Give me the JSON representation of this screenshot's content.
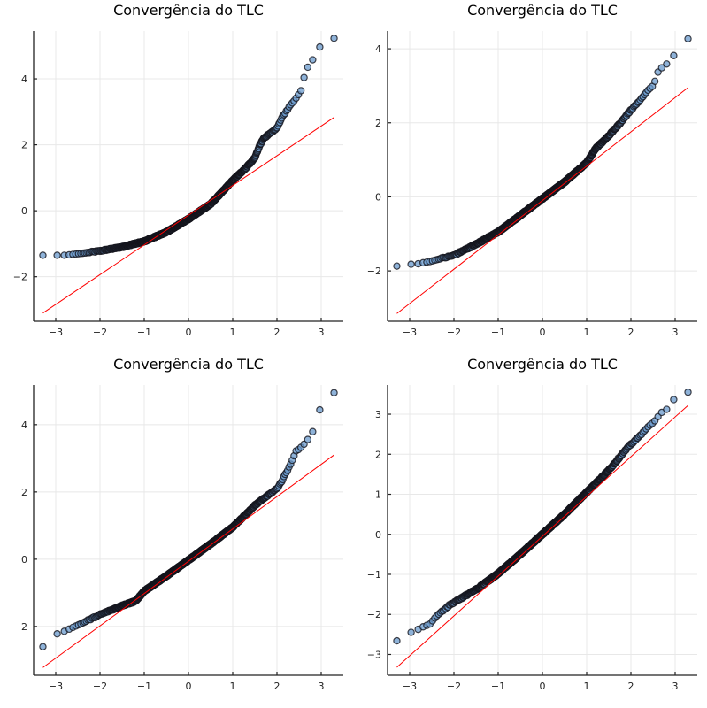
{
  "chart_data": [
    {
      "type": "scatter",
      "title": "Convergência do TLC",
      "xlabel": "",
      "ylabel": "",
      "xlim": [
        -3.5,
        3.5
      ],
      "ylim": [
        -3.35,
        5.45
      ],
      "xticks": [
        -3,
        -2,
        -1,
        0,
        1,
        2,
        3
      ],
      "yticks": [
        -2,
        0,
        2,
        4
      ],
      "grid": true,
      "reference_line": {
        "x": [
          -3.29,
          3.29
        ],
        "y": [
          -3.1,
          2.83
        ],
        "color": "#ff0000"
      },
      "quantile_curve": {
        "x": [
          -3.29,
          -2.97,
          -2.82,
          -2.72,
          -2.6,
          -2.4,
          -2.0,
          -1.5,
          -1.0,
          -0.5,
          0.0,
          0.5,
          1.0,
          1.3,
          1.5,
          1.6,
          1.7,
          2.0,
          2.1,
          2.2,
          2.3,
          2.4,
          2.5,
          2.57,
          2.61,
          2.71,
          2.82,
          2.97,
          3.29
        ],
        "y": [
          -1.35,
          -1.35,
          -1.35,
          -1.34,
          -1.32,
          -1.29,
          -1.22,
          -1.1,
          -0.93,
          -0.65,
          -0.25,
          0.2,
          0.92,
          1.3,
          1.6,
          1.95,
          2.2,
          2.5,
          2.8,
          3.0,
          3.2,
          3.35,
          3.55,
          3.7,
          4.03,
          4.4,
          4.6,
          4.97,
          5.23
        ]
      },
      "marker_color": "#6a99cc"
    },
    {
      "type": "scatter",
      "title": "Convergência do TLC",
      "xlabel": "",
      "ylabel": "",
      "xlim": [
        -3.5,
        3.5
      ],
      "ylim": [
        -3.36,
        4.48
      ],
      "xticks": [
        -3,
        -2,
        -1,
        0,
        1,
        2,
        3
      ],
      "yticks": [
        -2,
        0,
        2,
        4
      ],
      "grid": true,
      "reference_line": {
        "x": [
          -3.29,
          3.29
        ],
        "y": [
          -3.15,
          2.95
        ],
        "color": "#ff0000"
      },
      "quantile_curve": {
        "x": [
          -3.29,
          -2.97,
          -2.82,
          -2.7,
          -2.55,
          -2.3,
          -2.0,
          -1.5,
          -1.0,
          -0.5,
          0.0,
          0.5,
          1.0,
          1.2,
          1.5,
          1.8,
          2.0,
          2.2,
          2.4,
          2.5,
          2.57,
          2.62,
          2.71,
          2.82,
          2.97,
          3.29
        ],
        "y": [
          -1.87,
          -1.82,
          -1.81,
          -1.78,
          -1.75,
          -1.67,
          -1.58,
          -1.28,
          -0.95,
          -0.5,
          -0.05,
          0.4,
          0.92,
          1.3,
          1.65,
          2.05,
          2.35,
          2.6,
          2.9,
          3.0,
          3.2,
          3.4,
          3.5,
          3.6,
          3.82,
          4.27
        ]
      },
      "marker_color": "#6a99cc"
    },
    {
      "type": "scatter",
      "title": "Convergência do TLC",
      "xlabel": "",
      "ylabel": "",
      "xlim": [
        -3.5,
        3.5
      ],
      "ylim": [
        -3.45,
        5.18
      ],
      "xticks": [
        -3,
        -2,
        -1,
        0,
        1,
        2,
        3
      ],
      "yticks": [
        -2,
        0,
        2,
        4
      ],
      "grid": true,
      "reference_line": {
        "x": [
          -3.29,
          3.29
        ],
        "y": [
          -3.22,
          3.1
        ],
        "color": "#ff0000"
      },
      "quantile_curve": {
        "x": [
          -3.29,
          -2.97,
          -2.8,
          -2.65,
          -2.4,
          -2.0,
          -1.5,
          -1.2,
          -1.0,
          -0.5,
          0.0,
          0.5,
          1.0,
          1.5,
          2.0,
          2.1,
          2.22,
          2.3,
          2.38,
          2.43,
          2.5,
          2.6,
          2.71,
          2.82,
          2.97,
          3.29
        ],
        "y": [
          -2.6,
          -2.22,
          -2.14,
          -2.05,
          -1.9,
          -1.65,
          -1.38,
          -1.25,
          -0.95,
          -0.5,
          -0.03,
          0.45,
          0.95,
          1.6,
          2.1,
          2.3,
          2.6,
          2.8,
          3.05,
          3.22,
          3.27,
          3.4,
          3.58,
          3.82,
          4.45,
          4.95
        ]
      },
      "marker_color": "#6a99cc"
    },
    {
      "type": "scatter",
      "title": "Convergência do TLC",
      "xlabel": "",
      "ylabel": "",
      "xlim": [
        -3.5,
        3.5
      ],
      "ylim": [
        -3.52,
        3.73
      ],
      "xticks": [
        -3,
        -2,
        -1,
        0,
        1,
        2,
        3
      ],
      "yticks": [
        -3,
        -2,
        -1,
        0,
        1,
        2,
        3
      ],
      "grid": true,
      "reference_line": {
        "x": [
          -3.29,
          3.29
        ],
        "y": [
          -3.32,
          3.22
        ],
        "color": "#ff0000"
      },
      "quantile_curve": {
        "x": [
          -3.29,
          -2.97,
          -2.8,
          -2.68,
          -2.55,
          -2.4,
          -2.2,
          -2.0,
          -1.5,
          -1.0,
          -0.5,
          0.0,
          0.5,
          1.0,
          1.5,
          1.8,
          2.0,
          2.2,
          2.4,
          2.52,
          2.62,
          2.7,
          2.82,
          2.97,
          3.29
        ],
        "y": [
          -2.66,
          -2.45,
          -2.37,
          -2.3,
          -2.25,
          -2.05,
          -1.85,
          -1.7,
          -1.38,
          -0.98,
          -0.5,
          0.0,
          0.5,
          1.05,
          1.6,
          2.0,
          2.25,
          2.45,
          2.7,
          2.8,
          2.95,
          3.05,
          3.13,
          3.37,
          3.55
        ]
      },
      "marker_color": "#6a99cc"
    }
  ]
}
